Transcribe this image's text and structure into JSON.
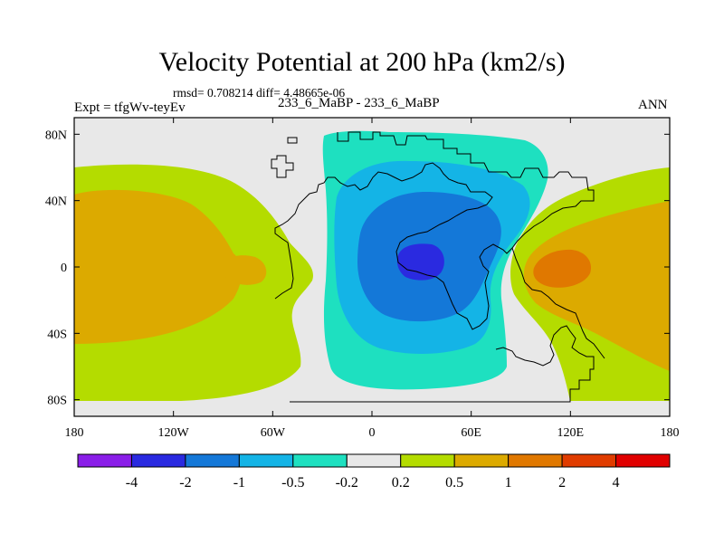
{
  "header": {
    "title": "Velocity Potential at 200 hPa (km2/s)",
    "stats": "rmsd= 0.708214 diff= 4.48665e-06",
    "expt": "Expt = tfgWv-teyEv",
    "case": "233_6_MaBP - 233_6_MaBP",
    "season": "ANN"
  },
  "chart_data": {
    "type": "filled-contour map",
    "title": "Velocity Potential at 200 hPa (km2/s)",
    "units": "km2/s",
    "xlabel": "",
    "ylabel": "",
    "xlim": [
      -180,
      180
    ],
    "ylim": [
      -90,
      90
    ],
    "x_ticks": [
      {
        "value": -180,
        "label": "180"
      },
      {
        "value": -120,
        "label": "120W"
      },
      {
        "value": -60,
        "label": "60W"
      },
      {
        "value": 0,
        "label": "0"
      },
      {
        "value": 60,
        "label": "60E"
      },
      {
        "value": 120,
        "label": "120E"
      },
      {
        "value": 180,
        "label": "180"
      }
    ],
    "y_ticks": [
      {
        "value": 80,
        "label": "80N"
      },
      {
        "value": 40,
        "label": "40N"
      },
      {
        "value": 0,
        "label": "0"
      },
      {
        "value": -40,
        "label": "40S"
      },
      {
        "value": -80,
        "label": "80S"
      }
    ],
    "levels": [
      "-4",
      "-2",
      "-1",
      "-0.5",
      "-0.2",
      "0.2",
      "0.5",
      "1",
      "2",
      "4"
    ],
    "colorbar_colors": [
      "#8a1ee8",
      "#2a2ae0",
      "#1478d8",
      "#14b4e6",
      "#1ee0c0",
      "#e8e8e8",
      "#b4dc00",
      "#dcaa00",
      "#e07800",
      "#e03c00",
      "#e00000"
    ],
    "features": [
      {
        "name": "strong-low-africa",
        "min_approx": -2,
        "center": [
          30,
          5
        ]
      },
      {
        "name": "high-pacific-west",
        "max_approx": 1,
        "center": [
          -150,
          10
        ]
      },
      {
        "name": "high-maritime",
        "max_approx": 2,
        "center": [
          120,
          0
        ]
      }
    ]
  }
}
